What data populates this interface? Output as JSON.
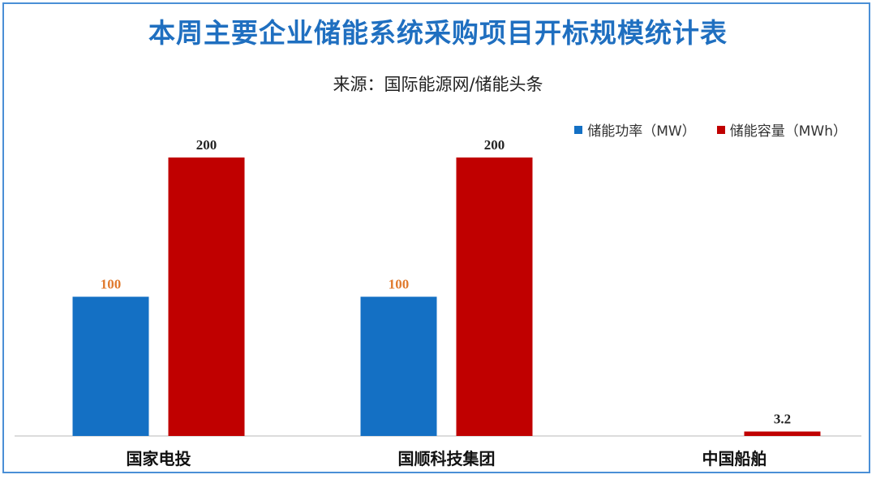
{
  "chart_data": {
    "type": "bar",
    "title": "本周主要企业储能系统采购项目开标规模统计表",
    "subtitle": "来源：国际能源网/储能头条",
    "categories": [
      "国家电投",
      "国顺科技集团",
      "中国船舶"
    ],
    "series": [
      {
        "name": "储能功率（MW）",
        "values": [
          100,
          100,
          null
        ],
        "color": "#1470c4",
        "label_color": "#e07a2e"
      },
      {
        "name": "储能容量（MWh）",
        "values": [
          200,
          200,
          3.2
        ],
        "color": "#c00000",
        "label_color": "#222222"
      }
    ],
    "ylim": [
      0,
      200
    ],
    "grid": false,
    "legend_position": "top-right"
  }
}
